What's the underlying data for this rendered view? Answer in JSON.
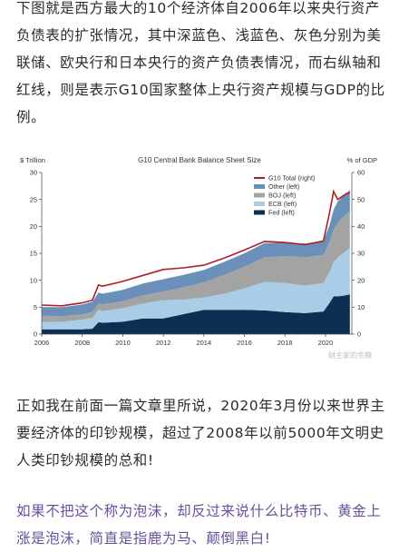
{
  "article": {
    "paragraph_1": "下图就是西方最大的10个经济体自2006年以来央行资产负债表的扩张情况，其中深蓝色、浅蓝色、灰色分别为美联储、欧央行和日本央行的资产负债表情况，而右纵轴和红线，则是表示G10国家整体上央行资产规模与GDP的比例。",
    "paragraph_2": "正如我在前面一篇文章里所说，2020年3月份以来世界主要经济体的印钞规模，超过了2008年以前5000年文明史人类印钞规模的总和!",
    "paragraph_3": "如果不把这个称为泡沫，却反过来说什么比特币、黄金上涨是泡沫，简直是指鹿为马、颠倒黑白!",
    "watermark": "财主家的余粮"
  },
  "chart_data": {
    "type": "area",
    "title": "G10 Central Bank Balance Sheet Size",
    "ylabel_left": "$ Trillion",
    "ylabel_right": "% of GDP",
    "ylim_left": [
      0,
      30
    ],
    "ylim_right": [
      0,
      60
    ],
    "yticks_left": [
      "0",
      "5",
      "10",
      "15",
      "20",
      "25",
      "30"
    ],
    "yticks_right": [
      "0",
      "10",
      "20",
      "30",
      "40",
      "50",
      "60"
    ],
    "xlim": [
      2006,
      2021.3
    ],
    "xticks": [
      "2006",
      "2008",
      "2010",
      "2012",
      "2014",
      "2016",
      "2018",
      "2020"
    ],
    "x": [
      2006,
      2007,
      2008,
      2008.5,
      2008.8,
      2009,
      2010,
      2011,
      2012,
      2013,
      2014,
      2015,
      2016,
      2017,
      2018,
      2019,
      2019.9,
      2020.2,
      2020.4,
      2020.6,
      2021,
      2021.2
    ],
    "series": [
      {
        "name": "Fed (left)",
        "color": "#0d2f52",
        "values": [
          0.9,
          0.9,
          0.9,
          1.0,
          2.2,
          2.1,
          2.3,
          2.9,
          2.9,
          3.7,
          4.5,
          4.5,
          4.5,
          4.4,
          4.1,
          3.9,
          4.2,
          5.8,
          7.0,
          7.0,
          7.2,
          7.4
        ]
      },
      {
        "name": "ECB (left)",
        "color": "#a9cde6",
        "values": [
          1.3,
          1.4,
          1.8,
          2.0,
          2.3,
          2.2,
          2.5,
          2.8,
          3.4,
          2.7,
          2.3,
          3.0,
          4.0,
          5.3,
          5.4,
          5.1,
          5.3,
          5.7,
          6.4,
          7.2,
          8.2,
          8.6
        ]
      },
      {
        "name": "BOJ (left)",
        "color": "#a3a3a3",
        "values": [
          1.2,
          1.0,
          1.0,
          1.1,
          1.2,
          1.2,
          1.3,
          1.5,
          1.6,
          2.3,
          2.8,
          3.5,
          4.0,
          4.6,
          5.0,
          5.3,
          5.2,
          5.6,
          6.0,
          6.5,
          6.8,
          6.8
        ]
      },
      {
        "name": "Other (left)",
        "color": "#6a8fb8",
        "values": [
          1.6,
          1.7,
          1.8,
          1.9,
          2.0,
          2.0,
          2.1,
          2.2,
          2.3,
          2.3,
          2.3,
          2.4,
          2.5,
          2.6,
          2.5,
          2.5,
          2.6,
          3.1,
          3.7,
          3.9,
          3.9,
          3.9
        ]
      }
    ],
    "line_series": {
      "name": "G10 Total (right)",
      "color": "#b01e24",
      "axis": "right",
      "values": [
        10.8,
        10.5,
        11.6,
        12.6,
        18.2,
        17.8,
        19.6,
        21.8,
        24.0,
        24.6,
        25.6,
        28.2,
        31.2,
        34.4,
        34.0,
        33.2,
        34.6,
        45.0,
        53.0,
        50.0,
        52.0,
        52.6
      ]
    },
    "legend_position": "top-right",
    "legend_order": [
      "G10 Total (right)",
      "Other (left)",
      "BOJ (left)",
      "ECB (left)",
      "Fed (left)"
    ],
    "grid": false
  }
}
